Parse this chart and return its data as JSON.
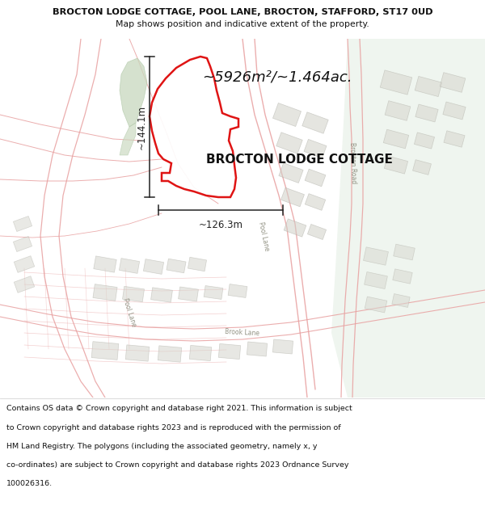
{
  "title_line1": "BROCTON LODGE COTTAGE, POOL LANE, BROCTON, STAFFORD, ST17 0UD",
  "title_line2": "Map shows position and indicative extent of the property.",
  "area_text": "~5926m²/~1.464ac.",
  "property_label": "BROCTON LODGE COTTAGE",
  "dim_vertical": "~144.1m",
  "dim_horizontal": "~126.3m",
  "footer_lines": [
    "Contains OS data © Crown copyright and database right 2021. This information is subject",
    "to Crown copyright and database rights 2023 and is reproduced with the permission of",
    "HM Land Registry. The polygons (including the associated geometry, namely x, y",
    "co-ordinates) are subject to Crown copyright and database rights 2023 Ordnance Survey",
    "100026316."
  ],
  "map_bg": "#f7f7f5",
  "road_color": "#e8a0a0",
  "road_fill": "#f5e8e8",
  "property_outline_color": "#dd0000",
  "dim_line_color": "#222222",
  "text_color": "#111111",
  "green_fill": "#d0dcc8",
  "green_fill2": "#c8d8c0",
  "plot_fill": "#e0e0d8",
  "plot_edge": "#c8c8c0",
  "right_bg": "#eef2ee"
}
